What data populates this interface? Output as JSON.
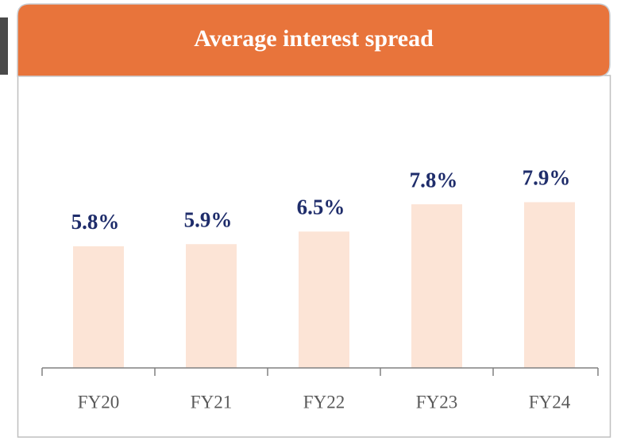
{
  "chart_data": {
    "type": "bar",
    "title": "Average interest spread",
    "categories": [
      "FY20",
      "FY21",
      "FY22",
      "FY23",
      "FY24"
    ],
    "values": [
      5.8,
      5.9,
      6.5,
      7.8,
      7.9
    ],
    "value_labels": [
      "5.8%",
      "5.9%",
      "6.5%",
      "7.8%",
      "7.9%"
    ],
    "color": "#FCE4D6"
  }
}
